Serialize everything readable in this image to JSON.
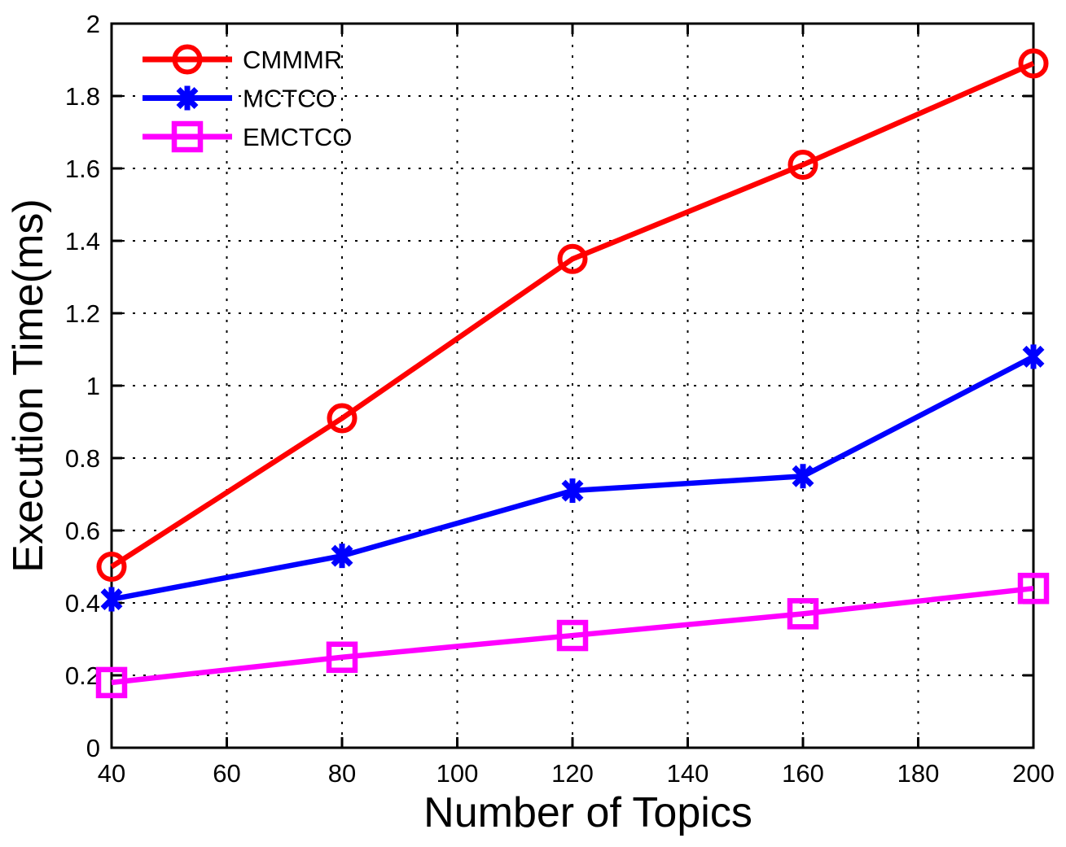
{
  "figure": {
    "background": "#ffffff",
    "axis_color": "#000000"
  },
  "chart_data": {
    "type": "line",
    "title": "",
    "xlabel": "Number of Topics",
    "ylabel": "Execution Time(ms)",
    "x": [
      40,
      80,
      120,
      160,
      200
    ],
    "series": [
      {
        "name": "CMMMR",
        "color": "#ff0000",
        "marker": "circle",
        "values": [
          0.5,
          0.91,
          1.35,
          1.61,
          1.89
        ]
      },
      {
        "name": "MCTCO",
        "color": "#0000ff",
        "marker": "asterisk",
        "values": [
          0.41,
          0.53,
          0.71,
          0.75,
          1.08
        ]
      },
      {
        "name": "EMCTCO",
        "color": "#ff00ff",
        "marker": "square",
        "values": [
          0.18,
          0.25,
          0.31,
          0.37,
          0.44
        ]
      }
    ],
    "xlim": [
      40,
      200
    ],
    "ylim": [
      0,
      2
    ],
    "xticks": [
      40,
      60,
      80,
      100,
      120,
      140,
      160,
      180,
      200
    ],
    "yticks": [
      0,
      0.2,
      0.4,
      0.6,
      0.8,
      1,
      1.2,
      1.4,
      1.6,
      1.8,
      2
    ],
    "grid": "dotted",
    "grid_color": "#000000",
    "legend_position": "top-left",
    "legend": [
      "CMMMR",
      "MCTCO",
      "EMCTCO"
    ]
  }
}
